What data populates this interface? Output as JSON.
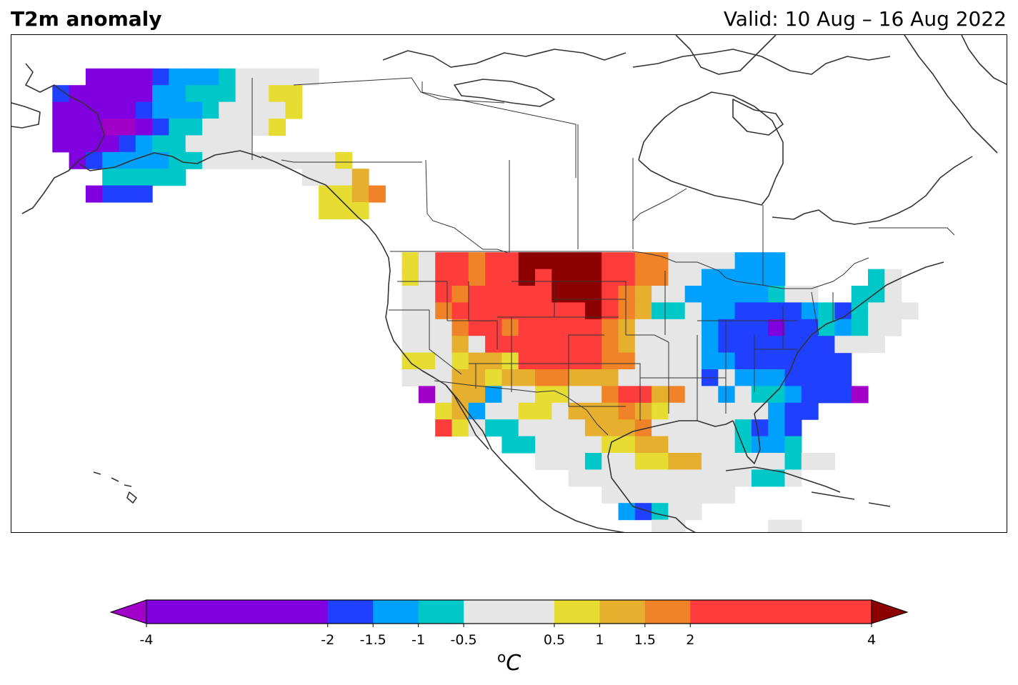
{
  "title": "T2m anomaly",
  "valid": "Valid: 10 Aug – 16 Aug 2022",
  "colorbar": {
    "unit_base": "C",
    "unit_prefix": "o",
    "ticks": [
      "-4",
      "-2",
      "-1.5",
      "-1",
      "-0.5",
      "0.5",
      "1",
      "1.5",
      "2",
      "4"
    ],
    "tick_values": [
      -4,
      -2,
      -1.5,
      -1,
      -0.5,
      0.5,
      1,
      1.5,
      2,
      4
    ],
    "bins": [
      {
        "from": -4,
        "to": -2,
        "color": "#8000e0"
      },
      {
        "from": -2,
        "to": -1.5,
        "color": "#2040ff"
      },
      {
        "from": -1.5,
        "to": -1,
        "color": "#00a0ff"
      },
      {
        "from": -1,
        "to": -0.5,
        "color": "#00c8c8"
      },
      {
        "from": -0.5,
        "to": 0.5,
        "color": "#e6e6e6"
      },
      {
        "from": 0.5,
        "to": 1,
        "color": "#e6dc32"
      },
      {
        "from": 1,
        "to": 1.5,
        "color": "#e6af2d"
      },
      {
        "from": 1.5,
        "to": 2,
        "color": "#f08228"
      },
      {
        "from": 2,
        "to": 4,
        "color": "#ff3c3c"
      }
    ],
    "under_color": "#a000c8",
    "over_color": "#8c0000"
  },
  "palette": {
    "P": "#a000c8",
    "V": "#8000e0",
    "B": "#2040ff",
    "L": "#00a0ff",
    "C": "#00c8c8",
    "G": "#e6e6e6",
    "Y": "#e6dc32",
    "O": "#e6af2d",
    "N": "#f08228",
    "R": "#ff3c3c",
    "D": "#8c0000"
  },
  "anomaly_grid": {
    "regions": [
      {
        "name": "alaska",
        "rows": [
          {
            "r": 2,
            "c": 3,
            "cells": "VVVVBLLLCGGGGG"
          },
          {
            "r": 3,
            "c": 1,
            "cells": "BVVVVVLLCCCGGYY"
          },
          {
            "r": 4,
            "c": 1,
            "cells": "VVVVVBLLLCGGGGY"
          },
          {
            "r": 5,
            "c": 1,
            "cells": "VVVPPVBCCGGGGY"
          },
          {
            "r": 6,
            "c": 1,
            "cells": "VVVVBLCCGGGG"
          },
          {
            "r": 7,
            "c": 2,
            "cells": "VBLLLLCCGGGGG"
          },
          {
            "r": 8,
            "c": 4,
            "cells": "CCCCC"
          },
          {
            "r": 9,
            "c": 3,
            "cells": "VBBB"
          }
        ]
      },
      {
        "name": "british-columbia",
        "rows": [
          {
            "r": 7,
            "c": 15,
            "cells": "GGGY"
          },
          {
            "r": 8,
            "c": 16,
            "cells": "GGGO"
          },
          {
            "r": 9,
            "c": 17,
            "cells": "YYON"
          },
          {
            "r": 10,
            "c": 17,
            "cells": "YYY"
          }
        ]
      },
      {
        "name": "conus",
        "rows": [
          {
            "r": 13,
            "c": 22,
            "cells": "YGRRNRRDDDDDRRNNGGGGLLL"
          },
          {
            "r": 14,
            "c": 22,
            "cells": "YGRRNRRDRDDDRRNNGGLLLLL"
          },
          {
            "r": 15,
            "c": 22,
            "cells": "GGRNRRRRRDDDRNOGGLLLLLCGG"
          },
          {
            "r": 16,
            "c": 22,
            "cells": "GGNRRRRRRRRDRNOCCGLLBBBBLCBBBGG"
          },
          {
            "r": 17,
            "c": 22,
            "cells": "GGGNRRNRRRRRNOGGGGLBBBVBBCCGCG"
          },
          {
            "r": 18,
            "c": 22,
            "cells": "GGGOGRRRRRRRNOGGGGLBBBBBBBBGG"
          },
          {
            "r": 19,
            "c": 22,
            "cells": "YYGYOOYRRRRRNNGGGGLLBBBBBBB"
          },
          {
            "r": 20,
            "c": 22,
            "cells": "GGGOOYOONNOOOGGGGGBGLLLBBBB"
          },
          {
            "r": 21,
            "c": 23,
            "cells": "PGOOLGGYYGGNRRONGGLGCCLBBBP"
          },
          {
            "r": 22,
            "c": 24,
            "cells": "YOLGGYYGOOONOYGGGGGGLBB"
          },
          {
            "r": 23,
            "c": 24,
            "cells": "RYGCCGGGGOOONGGGGGCBLB"
          },
          {
            "r": 24,
            "c": 28,
            "cells": "CCGGGGYYOOGGGGCLLC"
          },
          {
            "r": 25,
            "c": 30,
            "cells": "GGGCGGYYOOGGGGGCGG"
          },
          {
            "r": 26,
            "c": 32,
            "cells": "GGGGGGGGGGGCCG"
          },
          {
            "r": 27,
            "c": 34,
            "cells": "GGGGGGGG"
          },
          {
            "r": 28,
            "c": 35,
            "cells": "LBCGG"
          },
          {
            "r": 29,
            "c": 37,
            "cells": "GG"
          },
          {
            "r": 29,
            "c": 44,
            "cells": "GG"
          },
          {
            "r": 30,
            "c": 44,
            "cells": "GG"
          }
        ]
      },
      {
        "name": "new-england",
        "rows": [
          {
            "r": 14,
            "c": 50,
            "cells": "CG"
          },
          {
            "r": 15,
            "c": 49,
            "cells": "CCG"
          },
          {
            "r": 16,
            "c": 49,
            "cells": "CGG"
          },
          {
            "r": 17,
            "c": 48,
            "cells": "LCG"
          },
          {
            "r": 18,
            "c": 48,
            "cells": "GG"
          }
        ]
      }
    ]
  }
}
